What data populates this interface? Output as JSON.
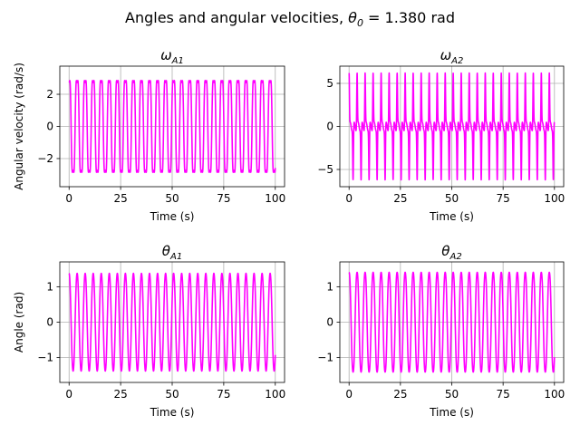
{
  "figure": {
    "suptitle_main": "Angles and angular velocities, ",
    "suptitle_sym": "θ",
    "suptitle_sub": "0",
    "suptitle_tail": "  = 1.380 rad"
  },
  "colors": {
    "line": "#ff00ff",
    "grid": "#b0b0b0",
    "axes": "#000000"
  },
  "chart_data": [
    {
      "type": "line",
      "title_sym": "ω",
      "title_sub": "A1",
      "xlabel": "Time (s)",
      "ylabel": "Angular velocity (rad/s)",
      "xlim": [
        -4.5,
        104.5
      ],
      "ylim": [
        -3.75,
        3.75
      ],
      "xticks": [
        0,
        25,
        50,
        75,
        100
      ],
      "yticks": [
        -2,
        0,
        2
      ],
      "grid": true,
      "signal": {
        "t_start": 0,
        "t_end": 100,
        "period_s": 3.9,
        "peak": 3.5,
        "shape": "oscillation with dip near peak"
      }
    },
    {
      "type": "line",
      "title_sym": "ω",
      "title_sub": "A2",
      "xlabel": "Time (s)",
      "ylabel": "",
      "xlim": [
        -4.5,
        104.5
      ],
      "ylim": [
        -7.0,
        7.0
      ],
      "xticks": [
        0,
        25,
        50,
        75,
        100
      ],
      "yticks": [
        -5,
        0,
        5
      ],
      "grid": true,
      "signal": {
        "t_start": 0,
        "t_end": 100,
        "period_s": 3.9,
        "peak": 6.2,
        "shape": "sharp spikes near zero baseline"
      }
    },
    {
      "type": "line",
      "title_sym": "θ",
      "title_sub": "A1",
      "xlabel": "Time (s)",
      "ylabel": "Angle (rad)",
      "xlim": [
        -4.5,
        104.5
      ],
      "ylim": [
        -1.7,
        1.7
      ],
      "xticks": [
        0,
        25,
        50,
        75,
        100
      ],
      "yticks": [
        -1,
        0,
        1
      ],
      "grid": true,
      "signal": {
        "t_start": 0,
        "t_end": 100,
        "period_s": 3.9,
        "peak": 1.45,
        "shape": "near-sinusoidal"
      }
    },
    {
      "type": "line",
      "title_sym": "θ",
      "title_sub": "A2",
      "xlabel": "Time (s)",
      "ylabel": "",
      "xlim": [
        -4.5,
        104.5
      ],
      "ylim": [
        -1.7,
        1.7
      ],
      "xticks": [
        0,
        25,
        50,
        75,
        100
      ],
      "yticks": [
        -1,
        0,
        1
      ],
      "grid": true,
      "signal": {
        "t_start": 0,
        "t_end": 100,
        "period_s": 3.9,
        "peak": 1.45,
        "shape": "sinusoid with plateau shoulders"
      }
    }
  ]
}
